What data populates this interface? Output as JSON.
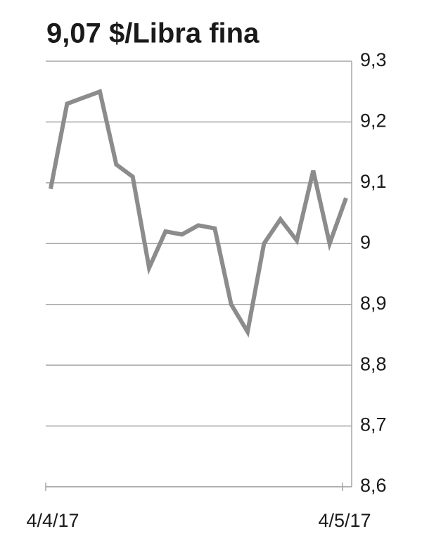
{
  "chart_data": {
    "type": "line",
    "title": "9,07 $/Libra fina",
    "categories": [
      "4/4/17",
      null,
      null,
      null,
      null,
      null,
      null,
      null,
      null,
      null,
      null,
      null,
      null,
      null,
      null,
      null,
      null,
      null,
      "4/5/17"
    ],
    "values": [
      9.09,
      9.23,
      9.24,
      9.25,
      9.13,
      9.11,
      8.96,
      9.02,
      9.015,
      9.03,
      9.025,
      8.9,
      8.855,
      9.0,
      9.04,
      9.005,
      9.12,
      9.0,
      9.075
    ],
    "color": "#8c8c8c",
    "ylim": [
      8.6,
      9.3
    ],
    "yticks": [
      {
        "value": 8.6,
        "label": "8,6"
      },
      {
        "value": 8.7,
        "label": "8,7"
      },
      {
        "value": 8.8,
        "label": "8,8"
      },
      {
        "value": 8.9,
        "label": "8,9"
      },
      9,
      {
        "value": 9.1,
        "label": "9,1"
      },
      {
        "value": 9.2,
        "label": "9,2"
      },
      {
        "value": 9.3,
        "label": "9,3"
      }
    ],
    "grid": true
  }
}
